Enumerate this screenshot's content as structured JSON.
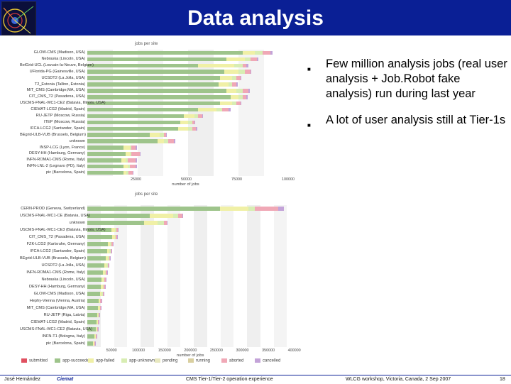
{
  "title": "Data analysis",
  "bullets": [
    "Few million analysis jobs (real user analysis + Job.Robot fake analysis) run during last year",
    "A lot of user analysis still at Tier-1s"
  ],
  "footer": {
    "author": "José Hernández",
    "org": "Ciemat",
    "center": "CMS Tier-1/Tier-2 operation experience",
    "event": "WLCG workshop, Victoria, Canada, 2 Sep 2007",
    "page": "18"
  },
  "legend": [
    "submitted",
    "app-succeeded",
    "app-failed",
    "app-unknown",
    "pending",
    "running",
    "aborted",
    "cancelled"
  ],
  "colors": {
    "header": "#0a1f95",
    "succeeded": "#9ec48b",
    "failed": "#f0f0a6",
    "unknown": "#d8edb3",
    "aborted": "#f0a8b6",
    "cancelled": "#c3a3d8",
    "submitted": "#e05060"
  },
  "chart_data": [
    {
      "type": "bar",
      "orientation": "horizontal-stacked",
      "title": "jobs per site",
      "xlabel": "number of jobs",
      "xlim": [
        0,
        100000
      ],
      "xticks": [
        "25000",
        "50000",
        "75000",
        "100000"
      ],
      "categories": [
        "GLOW-CMS (Madison, USA)",
        "Nebraska (Lincoln, USA)",
        "BelGrid-UCL (Louvain-la-Neuve, Belgium)",
        "UFlorida-PG (Gainesville, USA)",
        "UCSDT2 (La Jolla, USA)",
        "T2_Estonia (Tallinn, Estonia)",
        "MIT_CMS (Cambridge,MA, USA)",
        "CIT_CMS_T2 (Pasadena, USA)",
        "USCMS-FNAL-WC1-CE2 (Batavia, Illinois, USA)",
        "CIEMAT-LCG2 (Madrid, Spain)",
        "RU-JETP (Moscow, Russia)",
        "ITEP (Moscow, Russia)",
        "IFCA-LCG2 (Santander, Spain)",
        "BEgrid-ULB-VUB (Brussels, Belgium)",
        "unknown",
        "INSP-LCG (Lyon, France)",
        "DESY-HH (Hamburg, Germany)",
        "INFN-ROMA1-CMS (Rome, Italy)",
        "INFN-LNL-2 (Legnaro (PD), Italy)",
        "pic (Barcelona, Spain)"
      ],
      "series": [
        {
          "name": "app-succeeded",
          "values": [
            77000,
            69000,
            55000,
            68000,
            66000,
            65000,
            69000,
            71000,
            66000,
            55000,
            48000,
            46000,
            45000,
            31000,
            35000,
            18000,
            19000,
            17000,
            18000,
            18000
          ]
        },
        {
          "name": "app-failed",
          "values": [
            6000,
            9000,
            18000,
            7000,
            6000,
            5000,
            5000,
            4000,
            6000,
            9000,
            5000,
            4000,
            5000,
            5000,
            3000,
            3000,
            2000,
            2000,
            2000,
            1500
          ]
        },
        {
          "name": "app-unknown",
          "values": [
            4000,
            3000,
            4000,
            3000,
            2000,
            2000,
            3000,
            2000,
            2000,
            3000,
            2000,
            2000,
            2000,
            2000,
            2000,
            1000,
            1000,
            1000,
            1000,
            1000
          ]
        },
        {
          "name": "aborted",
          "values": [
            4000,
            3000,
            2000,
            3000,
            2000,
            2000,
            3000,
            2000,
            2000,
            3000,
            2000,
            1000,
            2000,
            1000,
            3000,
            2000,
            4000,
            4000,
            3000,
            2000
          ]
        },
        {
          "name": "cancelled",
          "values": [
            1000,
            1000,
            1000,
            500,
            500,
            500,
            500,
            500,
            500,
            1000,
            500,
            500,
            500,
            500,
            500,
            500,
            500,
            500,
            500,
            500
          ]
        }
      ]
    },
    {
      "type": "bar",
      "orientation": "horizontal-stacked",
      "title": "jobs per site",
      "xlabel": "number of jobs",
      "xlim": [
        0,
        410000
      ],
      "xticks": [
        "50000",
        "100000",
        "150000",
        "200000",
        "250000",
        "300000",
        "350000",
        "400000"
      ],
      "categories": [
        "CERN-PROD (Geneva, Switzerland)",
        "USCMS-FNAL-WC1-CE (Batavia, USA)",
        "unknown",
        "USCMS-FNAL-WC1-CE3 (Batavia, Illinois, USA)",
        "CIT_CMS_T2 (Pasadena, USA)",
        "FZK-LCG2 (Karlsruhe, Germany)",
        "IFCA-LCG2 (Santander, Spain)",
        "BEgrid-ULB-VUB (Brussels, Belgium)",
        "UCSDT2 (La Jolla, USA)",
        "INFN-ROMA1-CMS (Rome, Italy)",
        "Nebraska (Lincoln, USA)",
        "DESY-HH (Hamburg, Germany)",
        "GLOW-CMS (Madison, USA)",
        "Hephy-Vienna (Vienna, Austria)",
        "MIT_CMS (Cambridge,MA, USA)",
        "RU-JETP (Riga, Latvia)",
        "CIEMAT-LCG2 (Madrid, Spain)",
        "USCMS-FNAL-WC1-CE2 (Batavia, USA)",
        "INFN-T1 (Bologna, Italy)",
        "pic (Barcelona, Spain)"
      ],
      "series": [
        {
          "name": "app-succeeded",
          "values": [
            255000,
            120000,
            110000,
            47000,
            48000,
            40000,
            38000,
            35000,
            33000,
            30000,
            28000,
            26000,
            25000,
            22000,
            21000,
            19000,
            18000,
            16000,
            14000,
            11000
          ]
        },
        {
          "name": "app-failed",
          "values": [
            55000,
            45000,
            25000,
            6000,
            5000,
            4000,
            5000,
            5000,
            4000,
            4000,
            3000,
            4000,
            3000,
            2000,
            3000,
            2000,
            2000,
            2000,
            2000,
            2000
          ]
        },
        {
          "name": "app-unknown",
          "values": [
            12000,
            10000,
            12000,
            3000,
            2000,
            2000,
            2000,
            2000,
            2000,
            2000,
            2000,
            2000,
            2000,
            1000,
            1000,
            1000,
            1000,
            1000,
            1000,
            1000
          ]
        },
        {
          "name": "aborted",
          "values": [
            45000,
            8000,
            6000,
            3000,
            2000,
            3000,
            2000,
            2000,
            2000,
            2000,
            2000,
            2000,
            2000,
            2000,
            1000,
            1000,
            1000,
            1000,
            1000,
            1000
          ]
        },
        {
          "name": "cancelled",
          "values": [
            12000,
            2000,
            1000,
            500,
            500,
            500,
            500,
            500,
            500,
            500,
            500,
            500,
            500,
            500,
            500,
            500,
            500,
            500,
            500,
            500
          ]
        }
      ]
    }
  ]
}
